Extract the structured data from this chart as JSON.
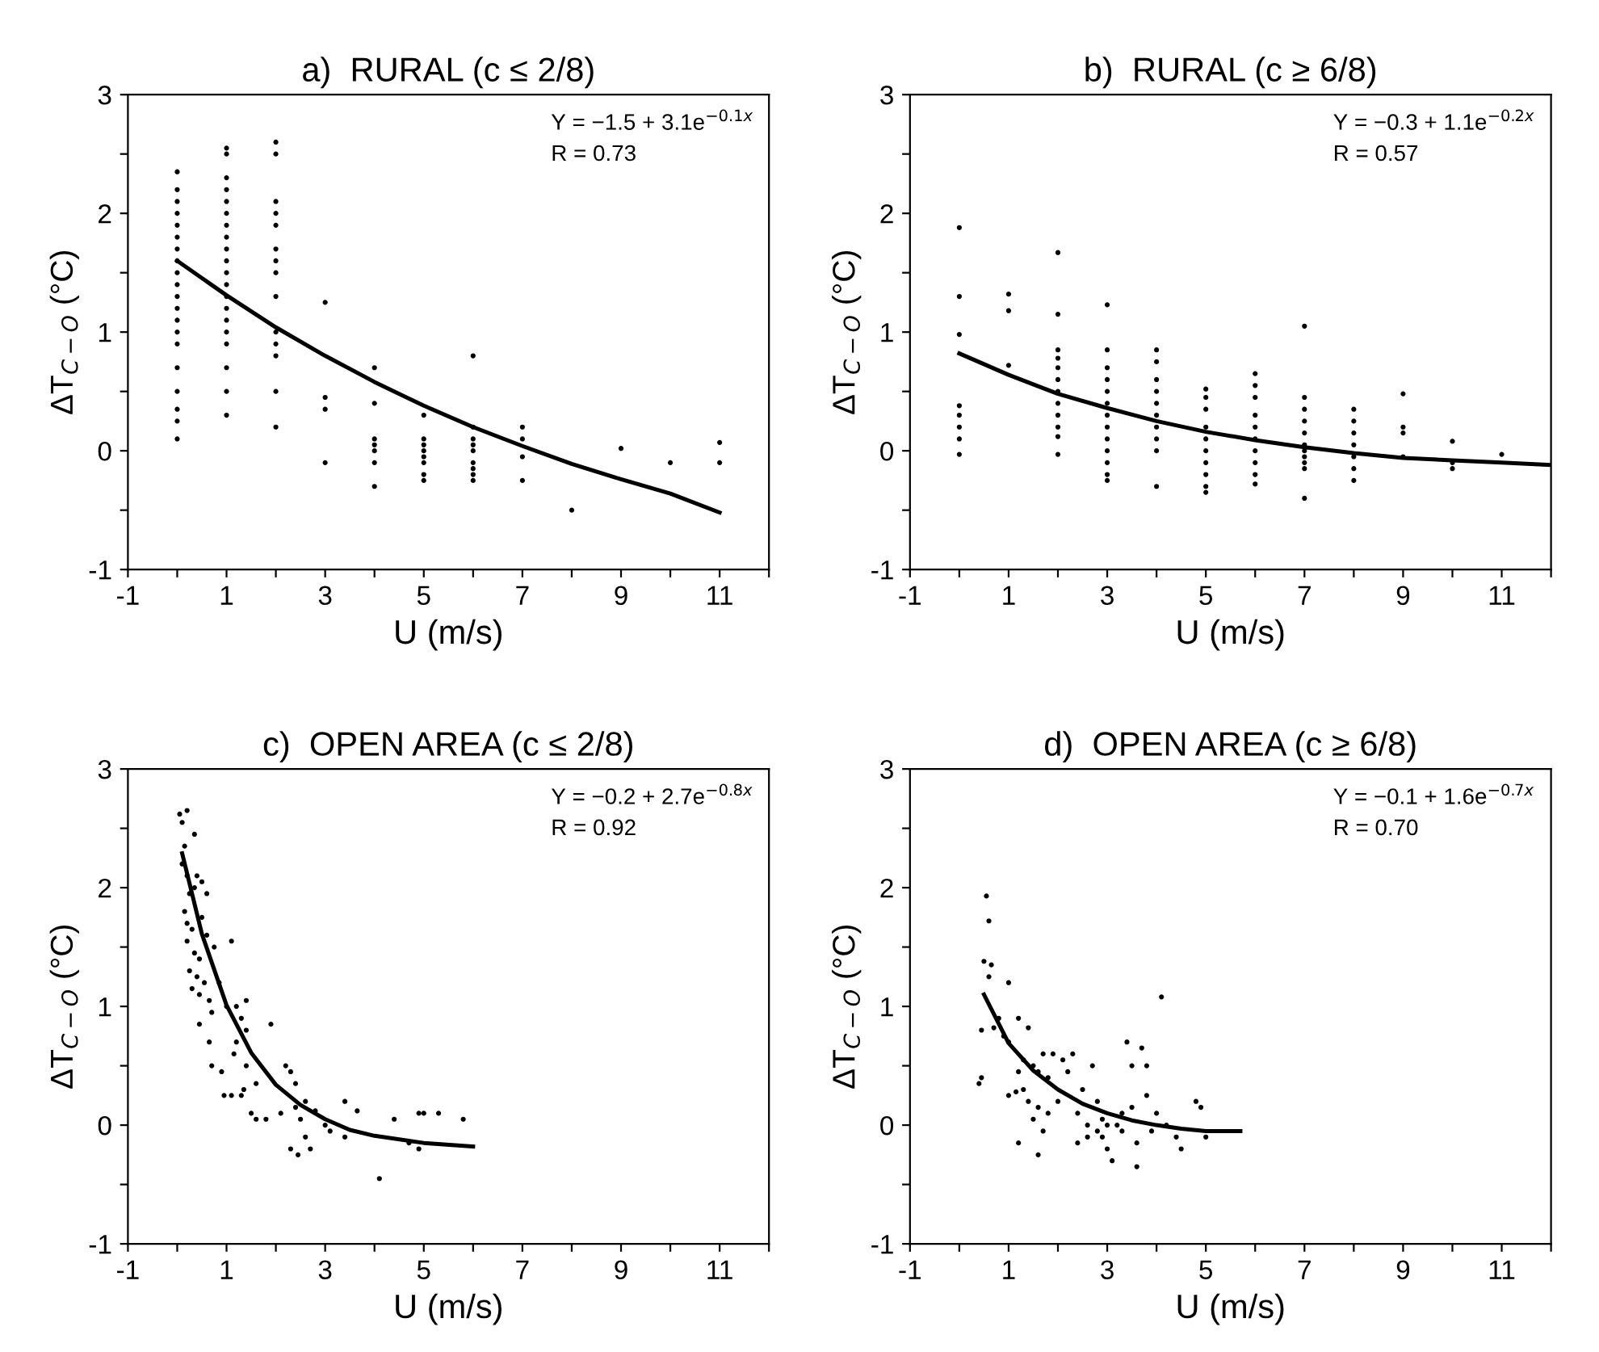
{
  "chart_data": [
    {
      "type": "scatter",
      "title": "a)  RURAL (c ≤ 2/8)",
      "xlabel": "U (m/s)",
      "ylabel": "ΔT$_{C−O}$ (°C)",
      "annotations": [
        "Y = −1.5 + 3.1e$^{−0.1x}$",
        "R = 0.73"
      ],
      "xlim": [
        -1,
        12
      ],
      "ylim": [
        -1,
        3
      ],
      "xticks": [
        -1,
        {
          "value": 0,
          "label": null
        },
        1,
        {
          "value": 2,
          "label": null
        },
        3,
        {
          "value": 4,
          "label": null
        },
        5,
        {
          "value": 6,
          "label": null
        },
        7,
        {
          "value": 8,
          "label": null
        },
        9,
        {
          "value": 10,
          "label": null
        },
        11,
        {
          "value": 12,
          "label": null
        }
      ],
      "yticks": [
        -1,
        {
          "value": -0.5,
          "label": null
        },
        0,
        {
          "value": 0.5,
          "label": null
        },
        1,
        {
          "value": 1.5,
          "label": null
        },
        2,
        {
          "value": 2.5,
          "label": null
        },
        3
      ],
      "grid": false,
      "series": [
        {
          "color": "#000000",
          "marker": "circle",
          "x": [
            0,
            0,
            0,
            0,
            0,
            0,
            0,
            0,
            0,
            0,
            0,
            0,
            0,
            0,
            0,
            0,
            0,
            0,
            0,
            0,
            1,
            1,
            1,
            1,
            1,
            1,
            1,
            1,
            1,
            1,
            1,
            1,
            1,
            1,
            1,
            1,
            1,
            1,
            1,
            1,
            2,
            2,
            2,
            2,
            2,
            2,
            2,
            2,
            2,
            2,
            2,
            2,
            2,
            2,
            3,
            3,
            3,
            3,
            4,
            4,
            4,
            4,
            4,
            4,
            4,
            5,
            5,
            5,
            5,
            5,
            5,
            5,
            5,
            6,
            6,
            6,
            6,
            6,
            6,
            6,
            6,
            6,
            7,
            7,
            7,
            7,
            8,
            9,
            10,
            11,
            11
          ],
          "values": [
            2.35,
            2.2,
            2.1,
            2.0,
            1.9,
            1.8,
            1.7,
            1.6,
            1.5,
            1.4,
            1.3,
            1.2,
            1.1,
            1.0,
            0.9,
            0.7,
            0.5,
            0.35,
            0.25,
            0.1,
            2.55,
            2.5,
            2.3,
            2.2,
            2.1,
            2.0,
            1.9,
            1.8,
            1.7,
            1.6,
            1.5,
            1.4,
            1.3,
            1.2,
            1.1,
            1.0,
            0.9,
            0.7,
            0.5,
            0.3,
            2.6,
            2.5,
            2.1,
            2.0,
            1.9,
            1.7,
            1.6,
            1.5,
            1.3,
            1.0,
            0.9,
            0.8,
            0.5,
            0.2,
            1.25,
            0.45,
            0.35,
            -0.1,
            0.7,
            0.4,
            0.1,
            0.05,
            0,
            -0.1,
            -0.3,
            0.3,
            0.1,
            0.05,
            0,
            -0.05,
            -0.1,
            -0.2,
            -0.25,
            0.8,
            0.2,
            0.1,
            0.05,
            0,
            -0.1,
            -0.15,
            -0.2,
            -0.25,
            0.2,
            0.1,
            -0.05,
            -0.25,
            -0.5,
            0.02,
            -0.1,
            0.07,
            -0.1
          ]
        },
        {
          "type": "line",
          "color": "#000000",
          "marker": "none",
          "line_style": "solid",
          "x": [
            0,
            1,
            2,
            3,
            4,
            5,
            6,
            7,
            8,
            9,
            10,
            11
          ],
          "values": [
            1.6,
            1.31,
            1.04,
            0.8,
            0.58,
            0.38,
            0.2,
            0.04,
            -0.11,
            -0.24,
            -0.36,
            -0.52
          ]
        }
      ]
    },
    {
      "type": "scatter",
      "title": "b)  RURAL (c ≥ 6/8)",
      "xlabel": "U (m/s)",
      "ylabel": "ΔT$_{C−O}$ (°C)",
      "annotations": [
        "Y = −0.3 + 1.1e$^{−0.2x}$",
        "R = 0.57"
      ],
      "xlim": [
        -1,
        12
      ],
      "ylim": [
        -1,
        3
      ],
      "xticks": [
        -1,
        {
          "value": 0,
          "label": null
        },
        1,
        {
          "value": 2,
          "label": null
        },
        3,
        {
          "value": 4,
          "label": null
        },
        5,
        {
          "value": 6,
          "label": null
        },
        7,
        {
          "value": 8,
          "label": null
        },
        9,
        {
          "value": 10,
          "label": null
        },
        11,
        {
          "value": 12,
          "label": null
        }
      ],
      "yticks": [
        -1,
        {
          "value": -0.5,
          "label": null
        },
        0,
        {
          "value": 0.5,
          "label": null
        },
        1,
        {
          "value": 1.5,
          "label": null
        },
        2,
        {
          "value": 2.5,
          "label": null
        },
        3
      ],
      "grid": false,
      "series": [
        {
          "color": "#000000",
          "marker": "circle",
          "x": [
            0,
            0,
            0,
            0,
            0,
            0,
            0,
            0,
            1,
            1,
            1,
            2,
            2,
            2,
            2,
            2,
            2,
            2,
            2,
            2,
            2,
            2,
            2,
            3,
            3,
            3,
            3,
            3,
            3,
            3,
            3,
            3,
            3,
            3,
            3,
            3,
            4,
            4,
            4,
            4,
            4,
            4,
            4,
            4,
            4,
            4,
            5,
            5,
            5,
            5,
            5,
            5,
            5,
            5,
            5,
            5,
            6,
            6,
            6,
            6,
            6,
            6,
            6,
            6,
            6,
            6,
            7,
            7,
            7,
            7,
            7,
            7,
            7,
            7,
            7,
            7,
            7,
            8,
            8,
            8,
            8,
            8,
            8,
            8,
            9,
            9,
            9,
            9,
            10,
            10,
            10,
            11
          ],
          "values": [
            1.88,
            1.3,
            0.98,
            0.38,
            0.3,
            0.2,
            0.1,
            -0.03,
            1.32,
            1.18,
            0.72,
            1.67,
            1.15,
            0.85,
            0.78,
            0.7,
            0.6,
            0.5,
            0.4,
            0.3,
            0.2,
            0.12,
            -0.03,
            1.23,
            0.85,
            0.7,
            0.6,
            0.5,
            0.4,
            0.3,
            0.2,
            0.1,
            0,
            -0.1,
            -0.2,
            -0.25,
            0.85,
            0.75,
            0.6,
            0.5,
            0.4,
            0.3,
            0.2,
            0.1,
            0,
            -0.3,
            0.52,
            0.45,
            0.35,
            0.2,
            0.1,
            0,
            -0.1,
            -0.2,
            -0.3,
            -0.35,
            0.65,
            0.55,
            0.45,
            0.3,
            0.2,
            0.1,
            0,
            -0.1,
            -0.2,
            -0.28,
            1.05,
            0.45,
            0.35,
            0.25,
            0.15,
            0.05,
            0,
            -0.05,
            -0.1,
            -0.15,
            -0.4,
            0.35,
            0.25,
            0.15,
            0.05,
            -0.05,
            -0.15,
            -0.25,
            0.48,
            0.2,
            0.15,
            -0.05,
            0.08,
            -0.1,
            -0.15,
            -0.03
          ]
        },
        {
          "type": "line",
          "color": "#000000",
          "marker": "none",
          "line_style": "solid",
          "x": [
            0,
            1,
            2,
            3,
            4,
            5,
            6,
            7,
            8,
            9,
            10,
            11,
            12
          ],
          "values": [
            0.82,
            0.64,
            0.48,
            0.36,
            0.25,
            0.16,
            0.09,
            0.03,
            -0.02,
            -0.06,
            -0.08,
            -0.1,
            -0.12
          ]
        }
      ]
    },
    {
      "type": "scatter",
      "title": "c)  OPEN AREA (c ≤ 2/8)",
      "xlabel": "U (m/s)",
      "ylabel": "ΔT$_{C−O}$ (°C)",
      "annotations": [
        "Y = −0.2 + 2.7e$^{−0.8x}$",
        "R = 0.92"
      ],
      "xlim": [
        -1,
        12
      ],
      "ylim": [
        -1,
        3
      ],
      "xticks": [
        -1,
        {
          "value": 0,
          "label": null
        },
        1,
        {
          "value": 2,
          "label": null
        },
        3,
        {
          "value": 4,
          "label": null
        },
        5,
        {
          "value": 6,
          "label": null
        },
        7,
        {
          "value": 8,
          "label": null
        },
        9,
        {
          "value": 10,
          "label": null
        },
        11,
        {
          "value": 12,
          "label": null
        }
      ],
      "yticks": [
        -1,
        {
          "value": -0.5,
          "label": null
        },
        0,
        {
          "value": 0.5,
          "label": null
        },
        1,
        {
          "value": 1.5,
          "label": null
        },
        2,
        {
          "value": 2.5,
          "label": null
        },
        3
      ],
      "grid": false,
      "series": [
        {
          "color": "#000000",
          "marker": "circle",
          "x": [
            0.05,
            0.1,
            0.2,
            0.35,
            0.15,
            0.1,
            0.2,
            0.35,
            0.4,
            0.5,
            0.6,
            0.25,
            0.15,
            0.2,
            0.3,
            0.5,
            0.6,
            0.75,
            0.2,
            0.35,
            0.45,
            0.25,
            0.4,
            0.55,
            0.3,
            0.45,
            1.1,
            0.85,
            0.65,
            0.7,
            0.45,
            1.0,
            1.2,
            1.4,
            1.3,
            1.4,
            0.65,
            0.7,
            1.9,
            1.2,
            1.15,
            1.4,
            0.9,
            0.95,
            1.1,
            1.35,
            1.3,
            1.6,
            1.5,
            1.6,
            1.8,
            2.2,
            2.3,
            2.4,
            2.6,
            2.4,
            2.1,
            2.5,
            2.8,
            2.6,
            2.3,
            2.45,
            2.7,
            3.0,
            3.1,
            3.4,
            3.4,
            3.65,
            4.4,
            4.9,
            5.0,
            5.3,
            5.8,
            4.7,
            4.9,
            4.1
          ],
          "values": [
            2.62,
            2.55,
            2.65,
            2.45,
            2.35,
            2.2,
            2.1,
            2.0,
            2.1,
            2.05,
            1.95,
            1.95,
            1.8,
            1.7,
            1.65,
            1.75,
            1.6,
            1.5,
            1.55,
            1.45,
            1.4,
            1.3,
            1.25,
            1.2,
            1.15,
            1.1,
            1.55,
            1.2,
            1.05,
            0.95,
            0.85,
            1.0,
            1.0,
            1.05,
            0.9,
            0.8,
            0.7,
            0.5,
            0.85,
            0.7,
            0.6,
            0.5,
            0.45,
            0.25,
            0.25,
            0.3,
            0.25,
            0.35,
            0.1,
            0.05,
            0.05,
            0.5,
            0.45,
            0.35,
            0.2,
            0.15,
            0.1,
            0.05,
            0.12,
            -0.1,
            -0.2,
            -0.25,
            -0.2,
            0.0,
            -0.05,
            -0.1,
            0.2,
            0.12,
            0.05,
            0.1,
            0.1,
            0.1,
            0.05,
            -0.15,
            -0.2,
            -0.45
          ]
        },
        {
          "type": "line",
          "color": "#000000",
          "marker": "none",
          "line_style": "solid",
          "x": [
            0.1,
            0.5,
            1,
            1.5,
            2,
            2.5,
            3,
            3.5,
            4,
            5,
            6
          ],
          "values": [
            2.29,
            1.61,
            1.01,
            0.61,
            0.34,
            0.17,
            0.05,
            -0.04,
            -0.09,
            -0.15,
            -0.18
          ]
        }
      ]
    },
    {
      "type": "scatter",
      "title": "d)  OPEN AREA (c ≥ 6/8)",
      "xlabel": "U (m/s)",
      "ylabel": "ΔT$_{C−O}$ (°C)",
      "annotations": [
        "Y = −0.1 + 1.6e$^{−0.7x}$",
        "R = 0.70"
      ],
      "xlim": [
        -1,
        12
      ],
      "ylim": [
        -1,
        3
      ],
      "xticks": [
        -1,
        {
          "value": 0,
          "label": null
        },
        1,
        {
          "value": 2,
          "label": null
        },
        3,
        {
          "value": 4,
          "label": null
        },
        5,
        {
          "value": 6,
          "label": null
        },
        7,
        {
          "value": 8,
          "label": null
        },
        9,
        {
          "value": 10,
          "label": null
        },
        11,
        {
          "value": 12,
          "label": null
        }
      ],
      "yticks": [
        -1,
        {
          "value": -0.5,
          "label": null
        },
        0,
        {
          "value": 0.5,
          "label": null
        },
        1,
        {
          "value": 1.5,
          "label": null
        },
        2,
        {
          "value": 2.5,
          "label": null
        },
        3
      ],
      "grid": false,
      "series": [
        {
          "color": "#000000",
          "marker": "circle",
          "x": [
            0.55,
            0.6,
            0.5,
            0.65,
            0.6,
            1.0,
            0.45,
            0.45,
            0.4,
            0.7,
            0.8,
            0.9,
            1.2,
            1.0,
            1.4,
            1.2,
            1.3,
            1.5,
            1.6,
            1.7,
            1.9,
            2.1,
            1.8,
            1.3,
            1.0,
            1.15,
            1.4,
            1.6,
            1.8,
            1.5,
            1.7,
            1.2,
            1.6,
            2.0,
            2.2,
            2.3,
            2.5,
            2.4,
            2.6,
            2.6,
            2.8,
            2.9,
            2.9,
            3.0,
            3.1,
            3.2,
            3.3,
            3.3,
            3.5,
            3.5,
            3.4,
            3.7,
            3.8,
            3.8,
            4.0,
            3.9,
            3.6,
            3.6,
            4.1,
            4.2,
            4.4,
            4.5,
            4.8,
            4.9,
            5.0,
            2.7,
            2.4,
            3.0,
            2.8
          ],
          "values": [
            1.93,
            1.72,
            1.38,
            1.35,
            1.25,
            1.2,
            0.8,
            0.4,
            0.35,
            0.82,
            0.9,
            0.75,
            0.9,
            0.7,
            0.82,
            0.45,
            0.55,
            0.5,
            0.45,
            0.6,
            0.6,
            0.55,
            0.4,
            0.3,
            0.25,
            0.28,
            0.2,
            0.15,
            0.1,
            0.05,
            -0.05,
            -0.15,
            -0.25,
            0.2,
            0.45,
            0.6,
            0.3,
            0.1,
            0.0,
            -0.1,
            0.2,
            0.05,
            -0.1,
            -0.2,
            -0.3,
            0.0,
            0.1,
            -0.05,
            0.15,
            0.5,
            0.7,
            0.65,
            0.5,
            0.25,
            0.1,
            -0.05,
            -0.15,
            -0.35,
            1.08,
            0.0,
            -0.1,
            -0.2,
            0.2,
            0.15,
            -0.1,
            0.5,
            -0.15,
            0.0,
            -0.05
          ]
        },
        {
          "type": "line",
          "color": "#000000",
          "marker": "none",
          "line_style": "solid",
          "x": [
            0.5,
            1,
            1.5,
            2,
            2.5,
            3,
            3.5,
            4,
            4.5,
            5,
            5.7
          ],
          "values": [
            1.1,
            0.69,
            0.46,
            0.3,
            0.18,
            0.1,
            0.04,
            0.0,
            -0.03,
            -0.05,
            -0.05
          ]
        }
      ]
    }
  ]
}
